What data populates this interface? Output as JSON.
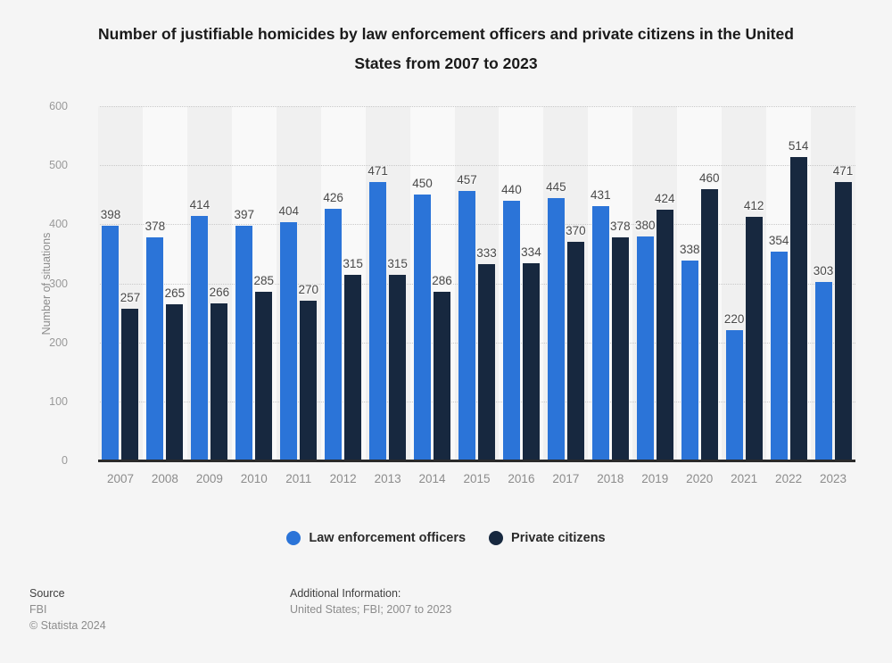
{
  "title": "Number of justifiable homicides by law enforcement officers and private citizens in the United States from 2007 to 2023",
  "chart_data": {
    "type": "bar",
    "categories": [
      "2007",
      "2008",
      "2009",
      "2010",
      "2011",
      "2012",
      "2013",
      "2014",
      "2015",
      "2016",
      "2017",
      "2018",
      "2019",
      "2020",
      "2021",
      "2022",
      "2023"
    ],
    "series": [
      {
        "name": "Law enforcement officers",
        "color": "#2b74d8",
        "values": [
          398,
          378,
          414,
          397,
          404,
          426,
          471,
          450,
          457,
          440,
          445,
          431,
          380,
          338,
          220,
          354,
          303
        ]
      },
      {
        "name": "Private citizens",
        "color": "#17283f",
        "values": [
          257,
          265,
          266,
          285,
          270,
          315,
          315,
          286,
          333,
          334,
          370,
          378,
          424,
          460,
          412,
          514,
          471
        ]
      }
    ],
    "xlabel": "",
    "ylabel": "Number of situations",
    "ylim": [
      0,
      600
    ],
    "yticks": [
      0,
      100,
      200,
      300,
      400,
      500,
      600
    ],
    "grid": true,
    "legend_position": "bottom"
  },
  "footer": {
    "source_label": "Source",
    "source_value": "FBI",
    "copyright": "© Statista 2024",
    "additional_label": "Additional Information:",
    "additional_value": "United States; FBI; 2007 to 2023"
  }
}
